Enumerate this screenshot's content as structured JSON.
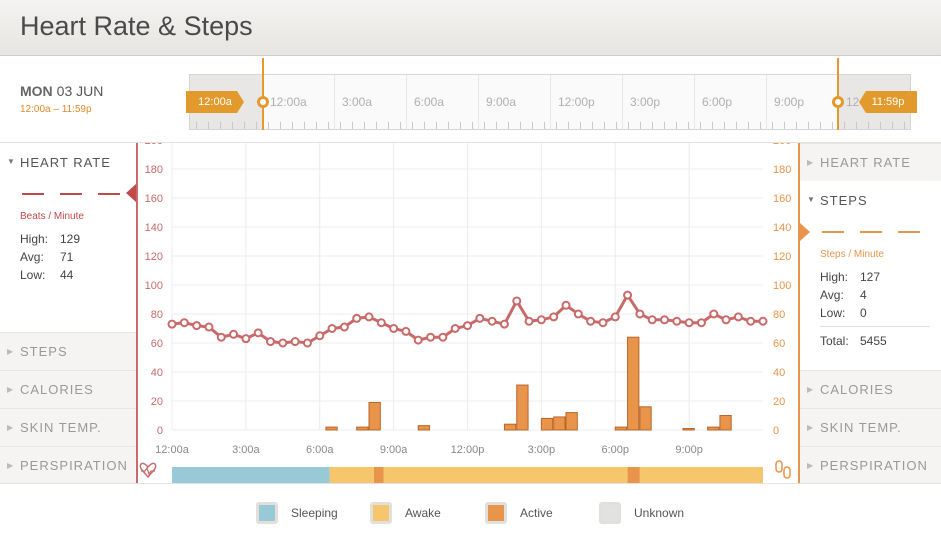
{
  "app": {
    "title": "Heart Rate & Steps"
  },
  "date": {
    "weekday": "MON",
    "date": "03 JUN",
    "range": "12:00a – 11:59p"
  },
  "timeline": {
    "labels": [
      "12:00a",
      "3:00a",
      "6:00a",
      "9:00a",
      "12:00p",
      "3:00p",
      "6:00p",
      "9:00p",
      "12"
    ],
    "start_flag": "12:00a",
    "end_flag": "11:59p"
  },
  "left_panel": {
    "heart_rate": {
      "title": "HEART RATE",
      "unit": "Beats / Minute",
      "high_label": "High:",
      "high": "129",
      "avg_label": "Avg:",
      "avg": "71",
      "low_label": "Low:",
      "low": "44"
    },
    "sections": [
      "STEPS",
      "CALORIES",
      "SKIN TEMP.",
      "PERSPIRATION"
    ]
  },
  "right_panel": {
    "top_section": "HEART RATE",
    "steps": {
      "title": "STEPS",
      "unit": "Steps / Minute",
      "high_label": "High:",
      "high": "127",
      "avg_label": "Avg:",
      "avg": "4",
      "low_label": "Low:",
      "low": "0",
      "total_label": "Total:",
      "total": "5455"
    },
    "sections": [
      "CALORIES",
      "SKIN TEMP.",
      "PERSPIRATION"
    ]
  },
  "legend": {
    "sleeping": "Sleeping",
    "awake": "Awake",
    "active": "Active",
    "unknown": "Unknown"
  },
  "colors": {
    "heart": "#c96a6a",
    "steps": "#e8944a",
    "sleeping": "#97cad6",
    "awake": "#f5c66b",
    "active": "#e8944a",
    "unknown": "#e2e2e2"
  },
  "chart_data": {
    "type": "line",
    "x_tick_labels": [
      "12:00a",
      "3:00a",
      "6:00a",
      "9:00a",
      "12:00p",
      "3:00p",
      "6:00p",
      "9:00p"
    ],
    "x_range_hours": [
      0,
      24
    ],
    "y_left": {
      "label": "Beats / Minute",
      "ylim": [
        0,
        200
      ],
      "ticks": [
        0,
        20,
        40,
        60,
        80,
        100,
        120,
        140,
        160,
        180,
        200
      ]
    },
    "y_right": {
      "label": "Steps / Minute",
      "ylim": [
        0,
        200
      ],
      "ticks": [
        0,
        20,
        40,
        60,
        80,
        100,
        120,
        140,
        160,
        180,
        200
      ]
    },
    "grid": true,
    "heart_rate_series": {
      "x_hours": [
        0,
        0.5,
        1,
        1.5,
        2,
        2.5,
        3,
        3.5,
        4,
        4.5,
        5,
        5.5,
        6,
        6.5,
        7,
        7.5,
        8,
        8.5,
        9,
        9.5,
        10,
        10.5,
        11,
        11.5,
        12,
        12.5,
        13,
        13.5,
        14,
        14.5,
        15,
        15.5,
        16,
        16.5,
        17,
        17.5,
        18,
        18.5,
        19,
        19.5,
        20,
        20.5,
        21,
        21.5,
        22,
        22.5,
        23,
        23.5,
        24
      ],
      "values": [
        73,
        74,
        72,
        71,
        64,
        66,
        63,
        67,
        61,
        60,
        61,
        60,
        65,
        70,
        71,
        77,
        78,
        74,
        70,
        68,
        62,
        64,
        64,
        70,
        72,
        77,
        75,
        73,
        89,
        75,
        76,
        78,
        86,
        80,
        75,
        74,
        78,
        93,
        80,
        76,
        76,
        75,
        74,
        74,
        80,
        76,
        78,
        75,
        75
      ]
    },
    "steps_series": {
      "bars": [
        {
          "x_hours": 6.5,
          "value": 2
        },
        {
          "x_hours": 7.75,
          "value": 2
        },
        {
          "x_hours": 8.25,
          "value": 19
        },
        {
          "x_hours": 10.25,
          "value": 3
        },
        {
          "x_hours": 13.75,
          "value": 4
        },
        {
          "x_hours": 14.25,
          "value": 31
        },
        {
          "x_hours": 15.25,
          "value": 8
        },
        {
          "x_hours": 15.75,
          "value": 9
        },
        {
          "x_hours": 16.25,
          "value": 12
        },
        {
          "x_hours": 18.25,
          "value": 2
        },
        {
          "x_hours": 18.75,
          "value": 64
        },
        {
          "x_hours": 19.25,
          "value": 16
        },
        {
          "x_hours": 21.0,
          "value": 1
        },
        {
          "x_hours": 22.0,
          "value": 2
        },
        {
          "x_hours": 22.5,
          "value": 10
        }
      ]
    },
    "activity_band": [
      {
        "state": "sleeping",
        "from_hours": 0,
        "to_hours": 6.4
      },
      {
        "state": "awake",
        "from_hours": 6.4,
        "to_hours": 8.2
      },
      {
        "state": "active",
        "from_hours": 8.2,
        "to_hours": 8.6
      },
      {
        "state": "awake",
        "from_hours": 8.6,
        "to_hours": 18.5
      },
      {
        "state": "active",
        "from_hours": 18.5,
        "to_hours": 19.0
      },
      {
        "state": "awake",
        "from_hours": 19.0,
        "to_hours": 24
      }
    ]
  }
}
